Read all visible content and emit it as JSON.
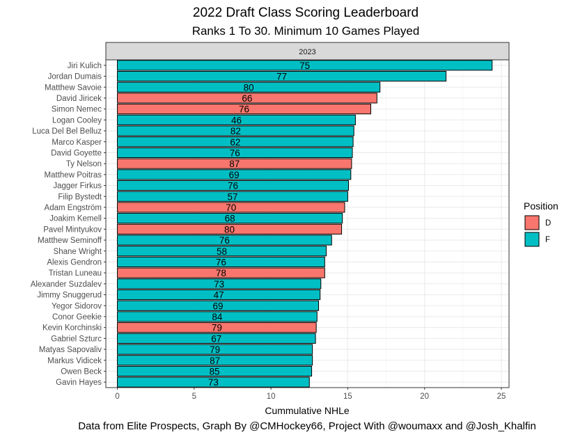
{
  "chart_data": {
    "type": "bar",
    "orientation": "horizontal",
    "title": "2022 Draft Class Scoring Leaderboard",
    "subtitle": "Ranks 1 To 30. Minimum 10 Games Played",
    "facet": "2023",
    "xlabel": "Cummulative NHLe",
    "caption": "Data from Elite Prospects, Graph By @CMHockey66, Project With @woumaxx and @Josh_Khalfin",
    "xlim": [
      -0.75,
      25.5
    ],
    "xticks": [
      0,
      5,
      10,
      15,
      20,
      25
    ],
    "grid": true,
    "legend": {
      "title": "Position",
      "placement": "right",
      "entries": [
        {
          "label": "D",
          "color": "#F8766D"
        },
        {
          "label": "F",
          "color": "#00BFC4"
        }
      ]
    },
    "bars": [
      {
        "player": "Jiri Kulich",
        "value": 24.4,
        "position": "F",
        "label": "75"
      },
      {
        "player": "Jordan Dumais",
        "value": 21.4,
        "position": "F",
        "label": "77"
      },
      {
        "player": "Matthew Savoie",
        "value": 17.1,
        "position": "F",
        "label": "80"
      },
      {
        "player": "David Jiricek",
        "value": 16.9,
        "position": "D",
        "label": "66"
      },
      {
        "player": "Simon Nemec",
        "value": 16.5,
        "position": "D",
        "label": "76"
      },
      {
        "player": "Logan Cooley",
        "value": 15.5,
        "position": "F",
        "label": "46"
      },
      {
        "player": "Luca Del Bel Belluz",
        "value": 15.4,
        "position": "F",
        "label": "82"
      },
      {
        "player": "Marco Kasper",
        "value": 15.35,
        "position": "F",
        "label": "62"
      },
      {
        "player": "David Goyette",
        "value": 15.3,
        "position": "F",
        "label": "76"
      },
      {
        "player": "Ty Nelson",
        "value": 15.25,
        "position": "D",
        "label": "87"
      },
      {
        "player": "Matthew Poitras",
        "value": 15.2,
        "position": "F",
        "label": "69"
      },
      {
        "player": "Jagger Firkus",
        "value": 15.05,
        "position": "F",
        "label": "76"
      },
      {
        "player": "Filip Bystedt",
        "value": 15.0,
        "position": "F",
        "label": "57"
      },
      {
        "player": "Adam Engström",
        "value": 14.8,
        "position": "D",
        "label": "70"
      },
      {
        "player": "Joakim Kemell",
        "value": 14.65,
        "position": "F",
        "label": "68"
      },
      {
        "player": "Pavel Mintyukov",
        "value": 14.6,
        "position": "D",
        "label": "80"
      },
      {
        "player": "Matthew Seminoff",
        "value": 13.95,
        "position": "F",
        "label": "76"
      },
      {
        "player": "Shane Wright",
        "value": 13.6,
        "position": "F",
        "label": "58"
      },
      {
        "player": "Alexis Gendron",
        "value": 13.5,
        "position": "F",
        "label": "76"
      },
      {
        "player": "Tristan Luneau",
        "value": 13.5,
        "position": "D",
        "label": "78"
      },
      {
        "player": "Alexander Suzdalev",
        "value": 13.25,
        "position": "F",
        "label": "73"
      },
      {
        "player": "Jimmy Snuggerud",
        "value": 13.2,
        "position": "F",
        "label": "47"
      },
      {
        "player": "Yegor Sidorov",
        "value": 13.1,
        "position": "F",
        "label": "69"
      },
      {
        "player": "Conor Geekie",
        "value": 13.0,
        "position": "F",
        "label": "84"
      },
      {
        "player": "Kevin Korchinski",
        "value": 12.95,
        "position": "D",
        "label": "79"
      },
      {
        "player": "Gabriel Szturc",
        "value": 12.9,
        "position": "F",
        "label": "67"
      },
      {
        "player": "Matyas Sapovaliv",
        "value": 12.7,
        "position": "F",
        "label": "79"
      },
      {
        "player": "Markus Vidicek",
        "value": 12.7,
        "position": "F",
        "label": "87"
      },
      {
        "player": "Owen Beck",
        "value": 12.65,
        "position": "F",
        "label": "85"
      },
      {
        "player": "Gavin Hayes",
        "value": 12.5,
        "position": "F",
        "label": "73"
      }
    ]
  }
}
